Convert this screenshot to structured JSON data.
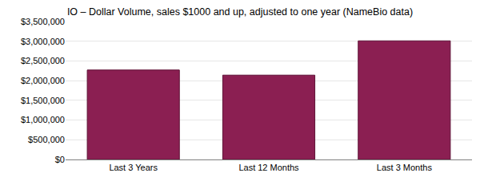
{
  "chart_data": {
    "type": "bar",
    "title": "IO – Dollar Volume, sales $1000 and up, adjusted to one year (NameBio data)",
    "categories": [
      "Last 3 Years",
      "Last 12 Months",
      "Last 3 Months"
    ],
    "values": [
      2270000,
      2140000,
      3010000
    ],
    "color": "#8b1f52",
    "ylim": [
      0,
      3500000
    ],
    "yticks": [
      {
        "value": 0,
        "label": "$0"
      },
      {
        "value": 500000,
        "label": "$500,000"
      },
      {
        "value": 1000000,
        "label": "$1,000,000"
      },
      {
        "value": 1500000,
        "label": "$1,500,000"
      },
      {
        "value": 2000000,
        "label": "$2,000,000"
      },
      {
        "value": 2500000,
        "label": "$2,500,000"
      },
      {
        "value": 3000000,
        "label": "$3,000,000"
      },
      {
        "value": 3500000,
        "label": "$3,500,000"
      }
    ],
    "grid": true
  }
}
